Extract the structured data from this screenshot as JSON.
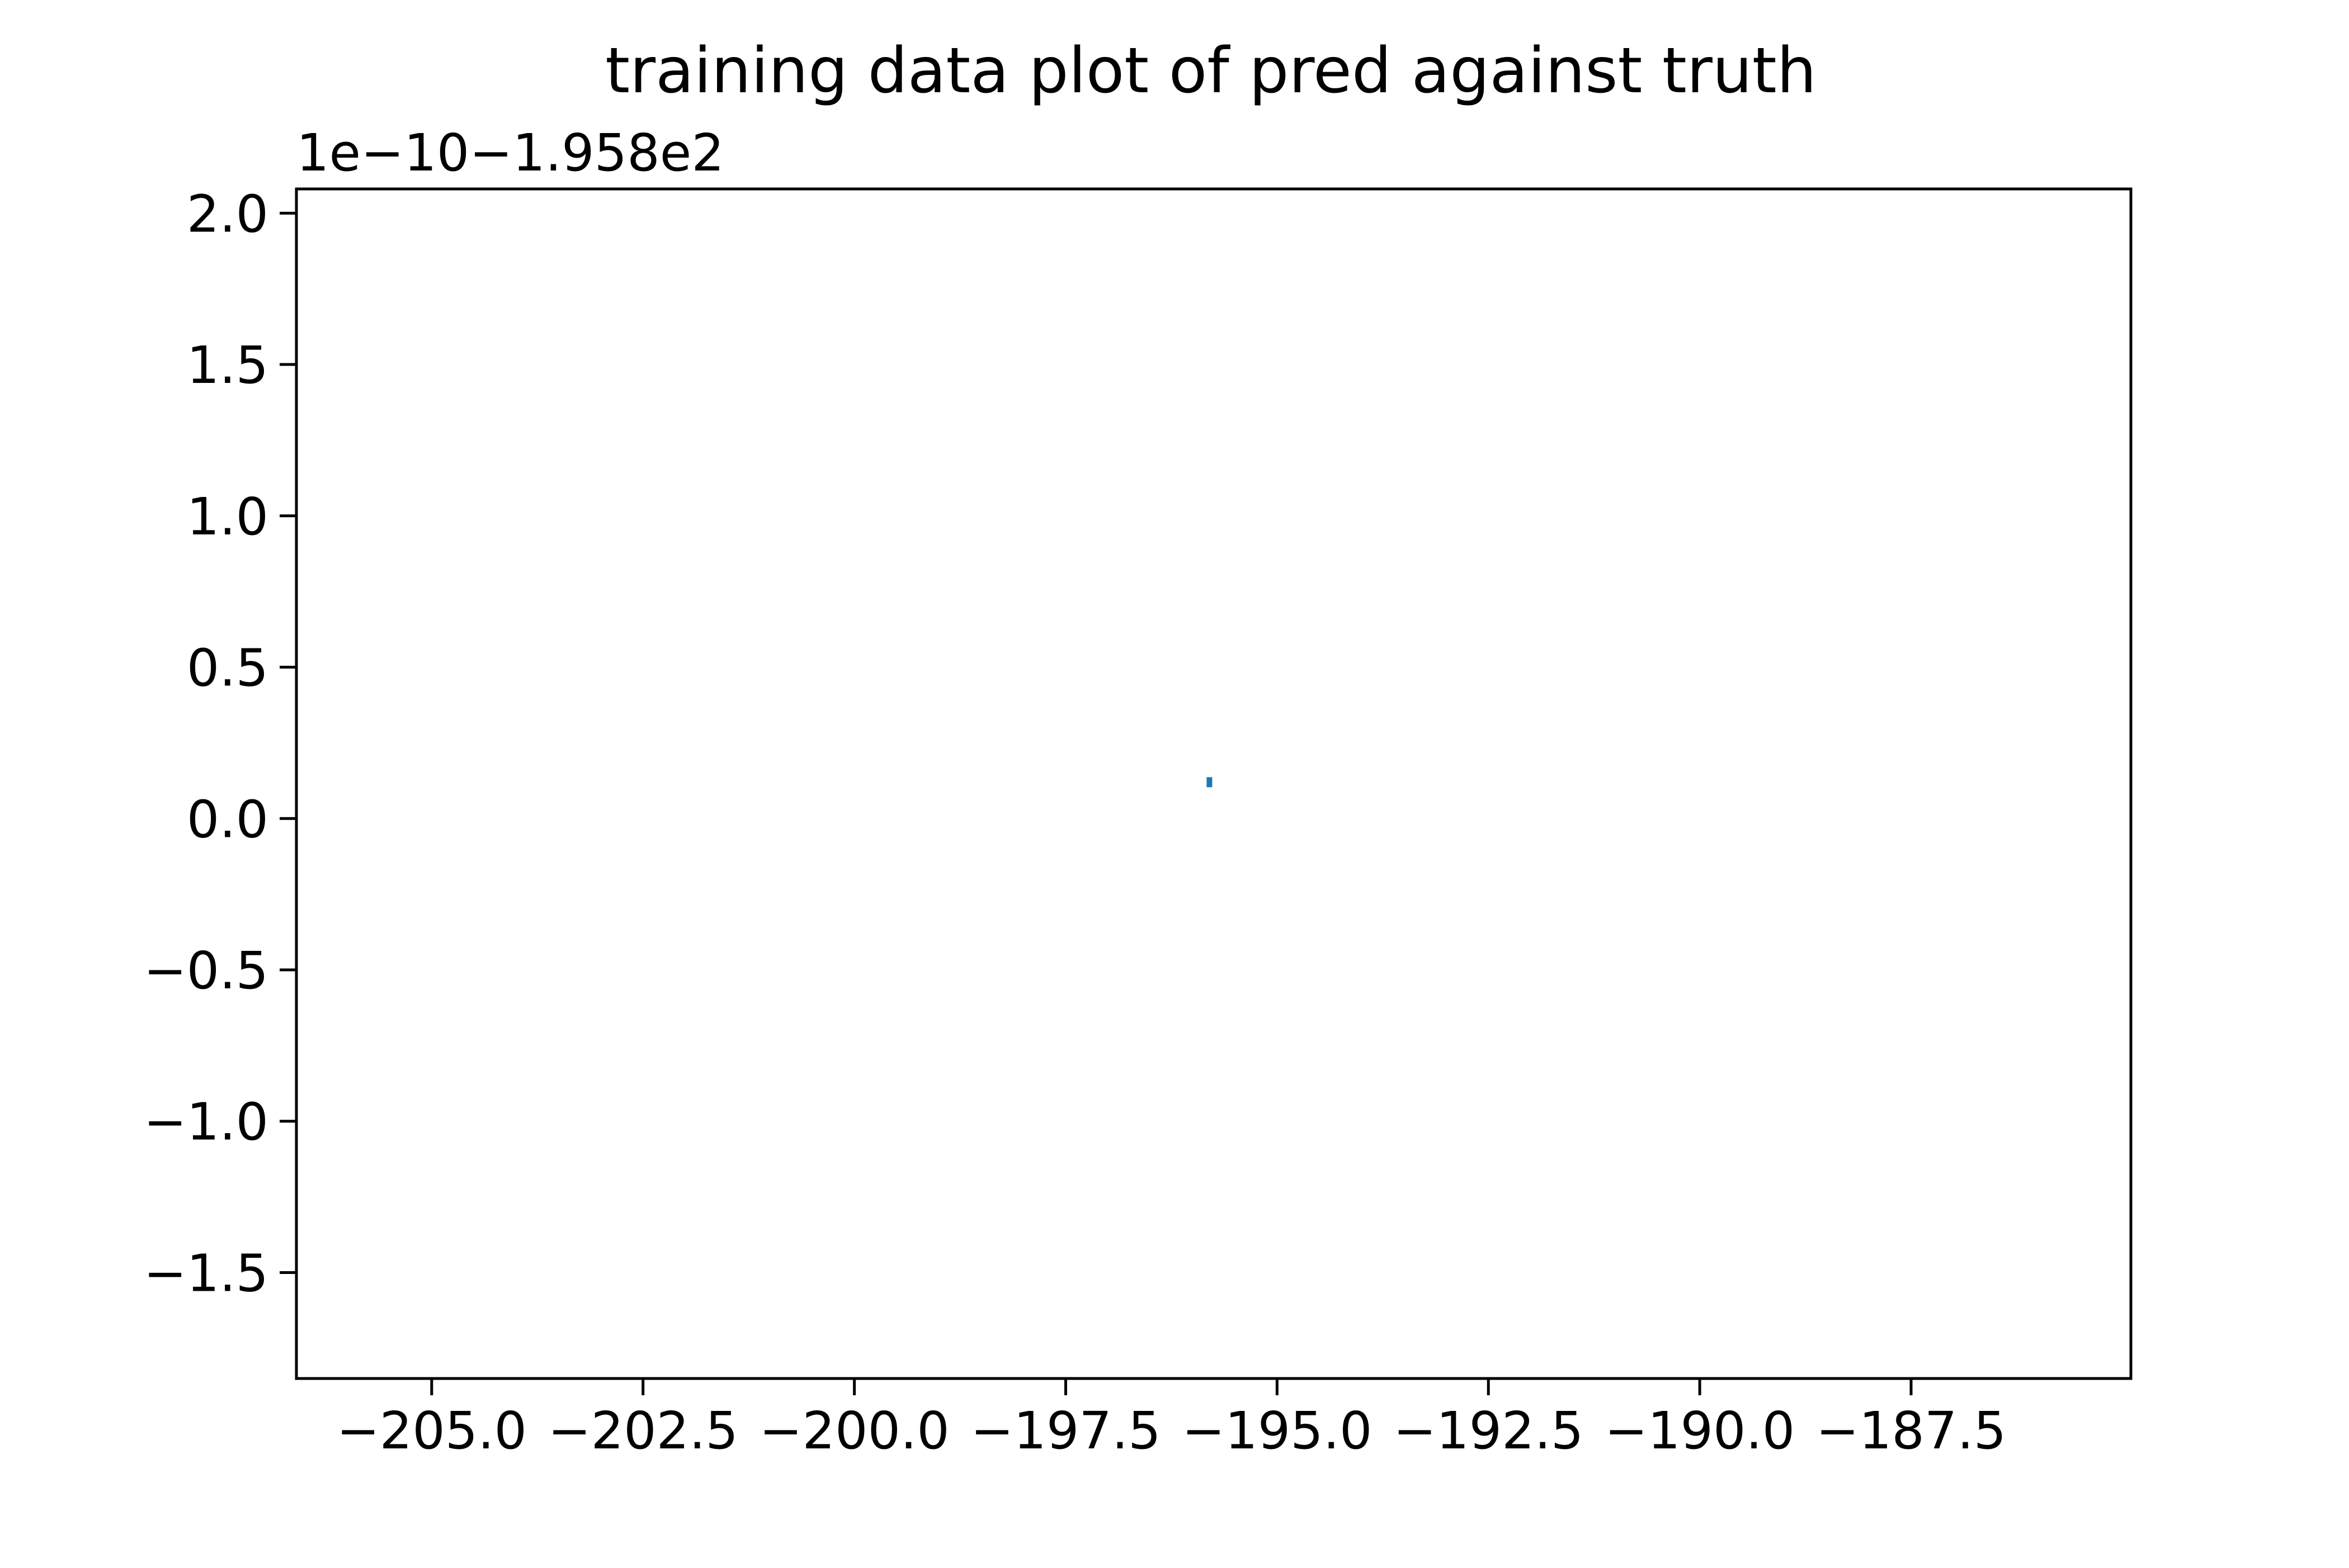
{
  "chart_data": {
    "type": "scatter",
    "title": "training data plot of pred against truth",
    "xlabel": "",
    "ylabel": "",
    "y_offset_text": "1e−10−1.958e2",
    "xlim": [
      -206.6,
      -184.9
    ],
    "ylim": [
      -1.85,
      2.08
    ],
    "x_ticks": [
      -205.0,
      -202.5,
      -200.0,
      -197.5,
      -195.0,
      -192.5,
      -190.0,
      -187.5
    ],
    "x_tick_labels": [
      "−205.0",
      "−202.5",
      "−200.0",
      "−197.5",
      "−195.0",
      "−192.5",
      "−190.0",
      "−187.5"
    ],
    "y_ticks": [
      -1.5,
      -1.0,
      -0.5,
      0.0,
      0.5,
      1.0,
      1.5,
      2.0
    ],
    "y_tick_labels": [
      "−1.5",
      "−1.0",
      "−0.5",
      "0.0",
      "0.5",
      "1.0",
      "1.5",
      "2.0"
    ],
    "points": [
      {
        "x": -195.8,
        "y": 0.12
      }
    ],
    "point_color": "#1f77b4",
    "grid": false,
    "legend": false
  }
}
